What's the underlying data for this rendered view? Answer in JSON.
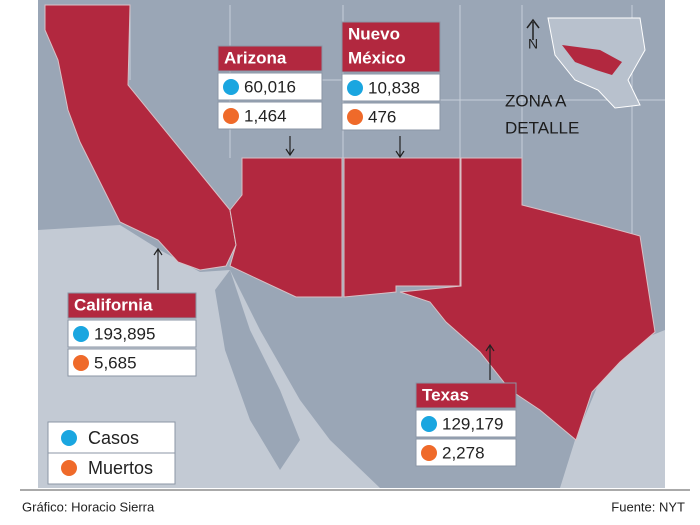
{
  "map": {
    "north": "N",
    "zone_label": [
      "ZONA A",
      "DETALLE"
    ]
  },
  "states": [
    {
      "name": [
        "Arizona"
      ],
      "cases": "60,016",
      "deaths": "1,464"
    },
    {
      "name": [
        "Nuevo",
        "México"
      ],
      "cases": "10,838",
      "deaths": "476"
    },
    {
      "name": [
        "California"
      ],
      "cases": "193,895",
      "deaths": "5,685"
    },
    {
      "name": [
        "Texas"
      ],
      "cases": "129,179",
      "deaths": "2,278"
    }
  ],
  "legend": [
    "Casos",
    "Muertos"
  ],
  "footer": {
    "credit": "Gráfico: Horacio Sierra",
    "source": "Fuente: NYT"
  }
}
